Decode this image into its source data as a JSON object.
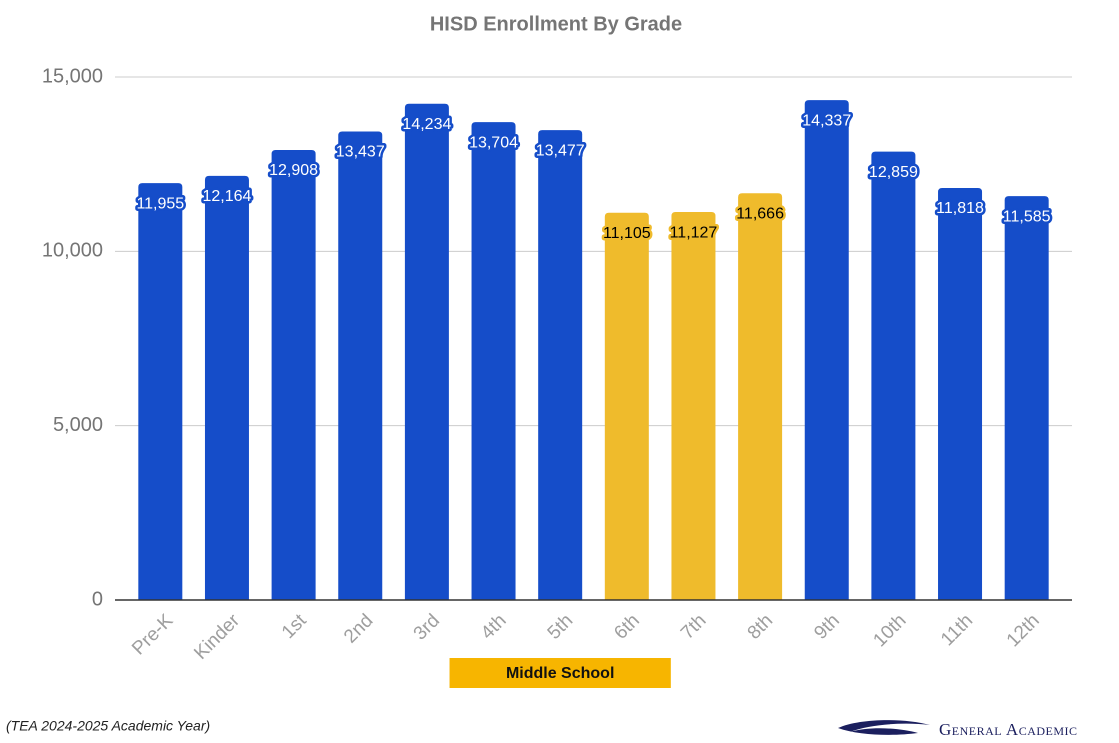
{
  "chart_data": {
    "type": "bar",
    "title": "HISD Enrollment By Grade",
    "categories": [
      "Pre-K",
      "Kinder",
      "1st",
      "2nd",
      "3rd",
      "4th",
      "5th",
      "6th",
      "7th",
      "8th",
      "9th",
      "10th",
      "11th",
      "12th"
    ],
    "values": [
      11955,
      12164,
      12908,
      13437,
      14234,
      13704,
      13477,
      11105,
      11127,
      11666,
      14337,
      12859,
      11818,
      11585
    ],
    "value_labels": [
      "11,955",
      "12,164",
      "12,908",
      "13,437",
      "14,234",
      "13,704",
      "13,477",
      "11,105",
      "11,127",
      "11,666",
      "14,337",
      "12,859",
      "11,818",
      "11,585"
    ],
    "colors": [
      "#154dc9",
      "#154dc9",
      "#154dc9",
      "#154dc9",
      "#154dc9",
      "#154dc9",
      "#154dc9",
      "#efbb2c",
      "#efbb2c",
      "#efbb2c",
      "#154dc9",
      "#154dc9",
      "#154dc9",
      "#154dc9"
    ],
    "ylim": [
      0,
      15000
    ],
    "yticks": [
      0,
      {
        "value": 5000,
        "label": "5,000"
      },
      {
        "value": 10000,
        "label": "10,000"
      },
      {
        "value": 15000,
        "label": "15,000"
      }
    ],
    "grid": true,
    "annotation": "Middle School",
    "footnote": "(TEA 2024-2025 Academic Year)",
    "brand": "General Academic"
  }
}
